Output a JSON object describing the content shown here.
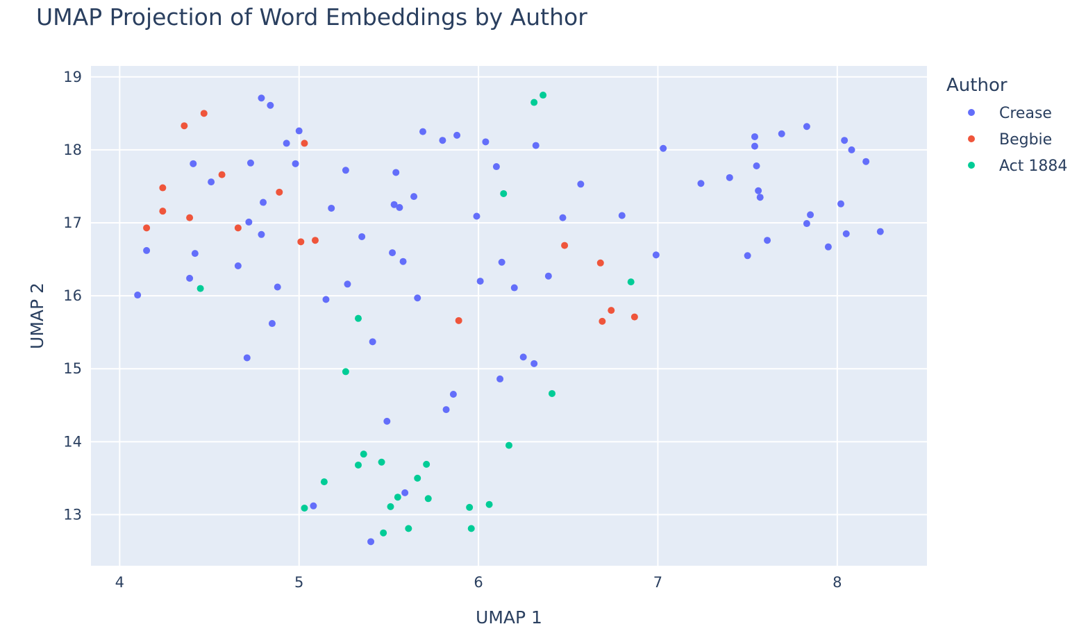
{
  "chart_data": {
    "type": "scatter",
    "title": "UMAP Projection of Word Embeddings by Author",
    "xlabel": "UMAP 1",
    "ylabel": "UMAP 2",
    "xlim": [
      3.84,
      8.5
    ],
    "ylim": [
      12.3,
      19.15
    ],
    "xticks": [
      "4",
      "5",
      "6",
      "7",
      "8"
    ],
    "yticks": [
      "13",
      "14",
      "15",
      "16",
      "17",
      "18",
      "19"
    ],
    "grid": true,
    "legend_title": "Author",
    "legend_position": "top-right",
    "series": [
      {
        "name": "Crease",
        "color": "#636efa",
        "points": [
          [
            4.1,
            16.01
          ],
          [
            4.15,
            16.62
          ],
          [
            4.39,
            16.24
          ],
          [
            4.41,
            17.81
          ],
          [
            4.42,
            16.58
          ],
          [
            4.51,
            17.56
          ],
          [
            4.66,
            16.41
          ],
          [
            4.71,
            15.15
          ],
          [
            4.72,
            17.01
          ],
          [
            4.73,
            17.82
          ],
          [
            4.79,
            18.71
          ],
          [
            4.79,
            16.84
          ],
          [
            4.8,
            17.28
          ],
          [
            4.84,
            18.61
          ],
          [
            4.85,
            15.62
          ],
          [
            4.88,
            16.12
          ],
          [
            4.93,
            18.09
          ],
          [
            4.98,
            17.81
          ],
          [
            5.0,
            18.26
          ],
          [
            5.08,
            13.12
          ],
          [
            5.15,
            15.95
          ],
          [
            5.18,
            17.2
          ],
          [
            5.26,
            17.72
          ],
          [
            5.27,
            16.16
          ],
          [
            5.35,
            16.81
          ],
          [
            5.4,
            12.63
          ],
          [
            5.41,
            15.37
          ],
          [
            5.49,
            14.28
          ],
          [
            5.52,
            16.59
          ],
          [
            5.53,
            17.25
          ],
          [
            5.54,
            17.69
          ],
          [
            5.56,
            17.21
          ],
          [
            5.58,
            16.47
          ],
          [
            5.59,
            13.3
          ],
          [
            5.64,
            17.36
          ],
          [
            5.66,
            15.97
          ],
          [
            5.69,
            18.25
          ],
          [
            5.8,
            18.13
          ],
          [
            5.82,
            14.44
          ],
          [
            5.86,
            14.65
          ],
          [
            5.88,
            18.2
          ],
          [
            5.99,
            17.09
          ],
          [
            6.01,
            16.2
          ],
          [
            6.04,
            18.11
          ],
          [
            6.1,
            17.77
          ],
          [
            6.12,
            14.86
          ],
          [
            6.13,
            16.46
          ],
          [
            6.2,
            16.11
          ],
          [
            6.25,
            15.16
          ],
          [
            6.31,
            15.07
          ],
          [
            6.32,
            18.06
          ],
          [
            6.39,
            16.27
          ],
          [
            6.47,
            17.07
          ],
          [
            6.57,
            17.53
          ],
          [
            6.8,
            17.1
          ],
          [
            6.99,
            16.56
          ],
          [
            7.03,
            18.02
          ],
          [
            7.24,
            17.54
          ],
          [
            7.4,
            17.62
          ],
          [
            7.5,
            16.55
          ],
          [
            7.54,
            18.18
          ],
          [
            7.54,
            18.05
          ],
          [
            7.55,
            17.78
          ],
          [
            7.56,
            17.44
          ],
          [
            7.57,
            17.35
          ],
          [
            7.61,
            16.76
          ],
          [
            7.69,
            18.22
          ],
          [
            7.83,
            18.32
          ],
          [
            7.83,
            16.99
          ],
          [
            7.85,
            17.11
          ],
          [
            7.95,
            16.67
          ],
          [
            8.02,
            17.26
          ],
          [
            8.04,
            18.13
          ],
          [
            8.05,
            16.85
          ],
          [
            8.08,
            18.0
          ],
          [
            8.16,
            17.84
          ],
          [
            8.24,
            16.88
          ]
        ]
      },
      {
        "name": "Begbie",
        "color": "#ef553b",
        "points": [
          [
            4.15,
            16.93
          ],
          [
            4.24,
            17.48
          ],
          [
            4.24,
            17.16
          ],
          [
            4.36,
            18.33
          ],
          [
            4.39,
            17.07
          ],
          [
            4.47,
            18.5
          ],
          [
            4.57,
            17.66
          ],
          [
            4.66,
            16.93
          ],
          [
            4.89,
            17.42
          ],
          [
            5.01,
            16.74
          ],
          [
            5.03,
            18.09
          ],
          [
            5.09,
            16.76
          ],
          [
            5.89,
            15.66
          ],
          [
            6.48,
            16.69
          ],
          [
            6.68,
            16.45
          ],
          [
            6.69,
            15.65
          ],
          [
            6.74,
            15.8
          ],
          [
            6.87,
            15.71
          ]
        ]
      },
      {
        "name": "Act 1884",
        "color": "#00cc96",
        "points": [
          [
            4.45,
            16.1
          ],
          [
            5.03,
            13.09
          ],
          [
            5.14,
            13.45
          ],
          [
            5.26,
            14.96
          ],
          [
            5.33,
            15.69
          ],
          [
            5.33,
            13.68
          ],
          [
            5.36,
            13.83
          ],
          [
            5.46,
            13.72
          ],
          [
            5.47,
            12.75
          ],
          [
            5.51,
            13.11
          ],
          [
            5.55,
            13.24
          ],
          [
            5.61,
            12.81
          ],
          [
            5.66,
            13.5
          ],
          [
            5.71,
            13.69
          ],
          [
            5.72,
            13.22
          ],
          [
            5.95,
            13.1
          ],
          [
            5.96,
            12.81
          ],
          [
            6.06,
            13.14
          ],
          [
            6.14,
            17.4
          ],
          [
            6.17,
            13.95
          ],
          [
            6.31,
            18.65
          ],
          [
            6.36,
            18.75
          ],
          [
            6.41,
            14.66
          ],
          [
            6.85,
            16.19
          ]
        ]
      }
    ]
  }
}
